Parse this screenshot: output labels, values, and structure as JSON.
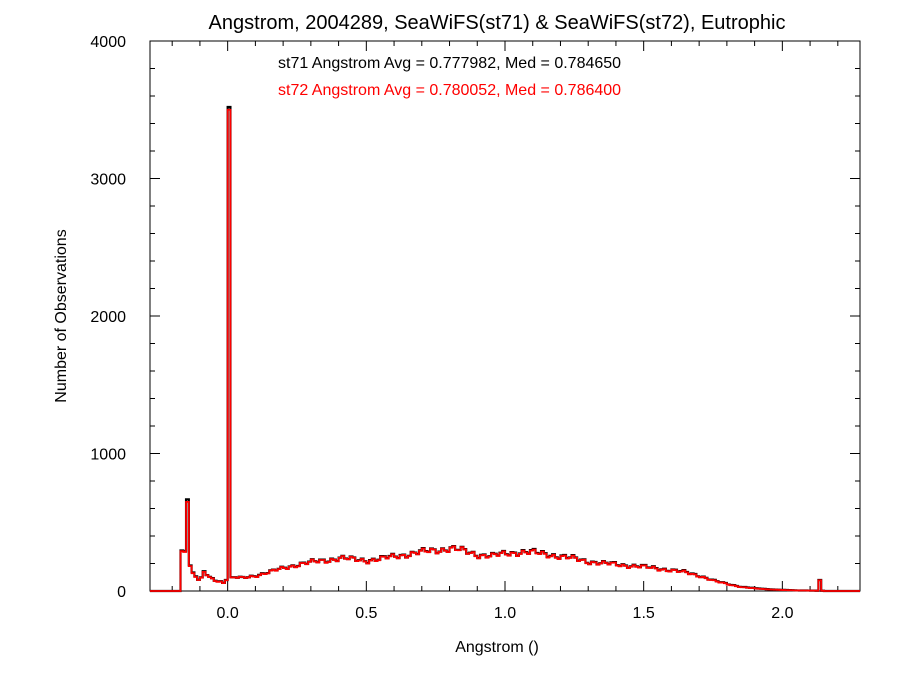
{
  "chart_data": {
    "type": "line",
    "title": "Angstrom, 2004289, SeaWiFS(st71) & SeaWiFS(st72), Eutrophic",
    "xlabel": "Angstrom ()",
    "ylabel": "Number of Observations",
    "xlim": [
      -0.28,
      2.28
    ],
    "ylim": [
      0,
      4000
    ],
    "x_ticks": [
      0.0,
      0.5,
      1.0,
      1.5,
      2.0
    ],
    "x_tick_labels": [
      "0.0",
      "0.5",
      "1.0",
      "1.5",
      "2.0"
    ],
    "y_ticks": [
      0,
      1000,
      2000,
      3000,
      4000
    ],
    "y_tick_labels": [
      "0",
      "1000",
      "2000",
      "3000",
      "4000"
    ],
    "grid": false,
    "annotations": [
      {
        "text": "st71 Angstrom Avg = 0.777982, Med = 0.784650",
        "color": "#000000"
      },
      {
        "text": "st72 Angstrom Avg = 0.780052, Med = 0.786400",
        "color": "#ff0000"
      }
    ],
    "bin_width": 0.01,
    "series": [
      {
        "color": "#000000",
        "x": [
          -0.18,
          -0.17,
          -0.16,
          -0.15,
          -0.14,
          -0.13,
          -0.12,
          -0.11,
          -0.1,
          -0.09,
          -0.08,
          -0.07,
          -0.06,
          -0.05,
          -0.04,
          -0.03,
          -0.02,
          -0.01,
          0.0,
          0.01,
          0.05,
          0.1,
          0.15,
          0.2,
          0.25,
          0.3,
          0.35,
          0.4,
          0.45,
          0.5,
          0.55,
          0.6,
          0.65,
          0.7,
          0.75,
          0.8,
          0.85,
          0.9,
          0.95,
          1.0,
          1.05,
          1.1,
          1.15,
          1.2,
          1.25,
          1.3,
          1.35,
          1.4,
          1.45,
          1.5,
          1.55,
          1.6,
          1.65,
          1.7,
          1.75,
          1.8,
          1.85,
          1.9,
          1.95,
          2.0,
          2.05,
          2.1,
          2.12,
          2.13,
          2.14,
          2.15,
          2.2,
          2.28
        ],
        "values": [
          0,
          290,
          310,
          720,
          180,
          130,
          110,
          80,
          90,
          140,
          120,
          100,
          90,
          80,
          75,
          70,
          60,
          80,
          3520,
          100,
          95,
          115,
          140,
          170,
          195,
          210,
          225,
          240,
          230,
          225,
          235,
          255,
          270,
          285,
          300,
          310,
          290,
          265,
          255,
          275,
          285,
          280,
          270,
          250,
          235,
          215,
          200,
          195,
          185,
          175,
          165,
          150,
          135,
          110,
          75,
          50,
          30,
          20,
          12,
          8,
          4,
          3,
          2,
          80,
          2,
          0,
          0,
          0
        ]
      },
      {
        "color": "#ff0000",
        "x": [
          -0.18,
          -0.17,
          -0.16,
          -0.15,
          -0.14,
          -0.13,
          -0.12,
          -0.11,
          -0.1,
          -0.09,
          -0.08,
          -0.07,
          -0.06,
          -0.05,
          -0.04,
          -0.03,
          -0.02,
          -0.01,
          0.0,
          0.01,
          0.05,
          0.1,
          0.15,
          0.2,
          0.25,
          0.3,
          0.35,
          0.4,
          0.45,
          0.5,
          0.55,
          0.6,
          0.65,
          0.7,
          0.75,
          0.8,
          0.85,
          0.9,
          0.95,
          1.0,
          1.05,
          1.1,
          1.15,
          1.2,
          1.25,
          1.3,
          1.35,
          1.4,
          1.45,
          1.5,
          1.55,
          1.6,
          1.65,
          1.7,
          1.75,
          1.8,
          1.85,
          1.9,
          1.95,
          2.0,
          2.05,
          2.1,
          2.12,
          2.13,
          2.14,
          2.15,
          2.2,
          2.28
        ],
        "values": [
          0,
          285,
          305,
          700,
          175,
          125,
          105,
          78,
          88,
          135,
          118,
          98,
          88,
          78,
          72,
          68,
          58,
          78,
          3500,
          98,
          95,
          112,
          138,
          168,
          192,
          208,
          222,
          238,
          228,
          222,
          232,
          252,
          268,
          282,
          298,
          308,
          288,
          262,
          252,
          272,
          282,
          276,
          266,
          246,
          232,
          212,
          198,
          192,
          182,
          172,
          162,
          148,
          132,
          108,
          72,
          48,
          28,
          18,
          11,
          7,
          4,
          3,
          2,
          78,
          2,
          0,
          0,
          0
        ]
      }
    ]
  }
}
